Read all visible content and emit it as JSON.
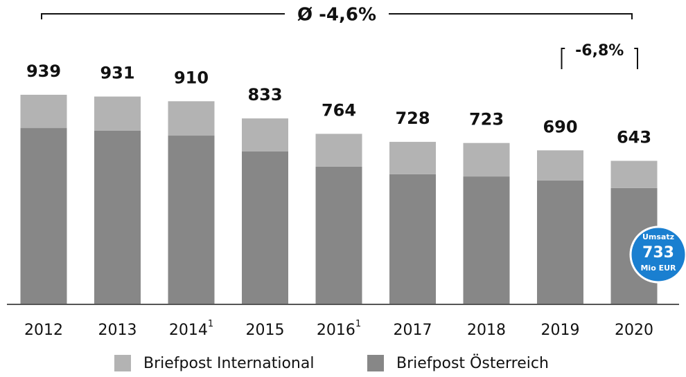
{
  "chart_data": {
    "type": "stacked_bar",
    "categories": [
      "2012",
      "2013",
      "2014",
      "2015",
      "2016",
      "2017",
      "2018",
      "2019",
      "2020"
    ],
    "category_superscripts": [
      null,
      null,
      "1",
      null,
      "1",
      null,
      null,
      null,
      null
    ],
    "series": [
      {
        "name": "Briefpost Österreich",
        "color": "#878787",
        "values": [
          790,
          778,
          756,
          685,
          617,
          583,
          573,
          555,
          521
        ]
      },
      {
        "name": "Briefpost International",
        "color": "#b3b3b3",
        "values": [
          149,
          153,
          154,
          148,
          147,
          145,
          150,
          135,
          122
        ]
      }
    ],
    "totals": [
      939,
      931,
      910,
      833,
      764,
      728,
      723,
      690,
      643
    ],
    "annotations": [
      {
        "text": "Ø -4,6%",
        "from": 0,
        "to": 8
      },
      {
        "text": "-6,8%",
        "from": 7,
        "to": 8
      }
    ],
    "badge": {
      "title": "Umsatz",
      "value": 733,
      "unit": "Mio EUR",
      "color": "#1a7fd0"
    },
    "legend_order": [
      1,
      0
    ]
  }
}
